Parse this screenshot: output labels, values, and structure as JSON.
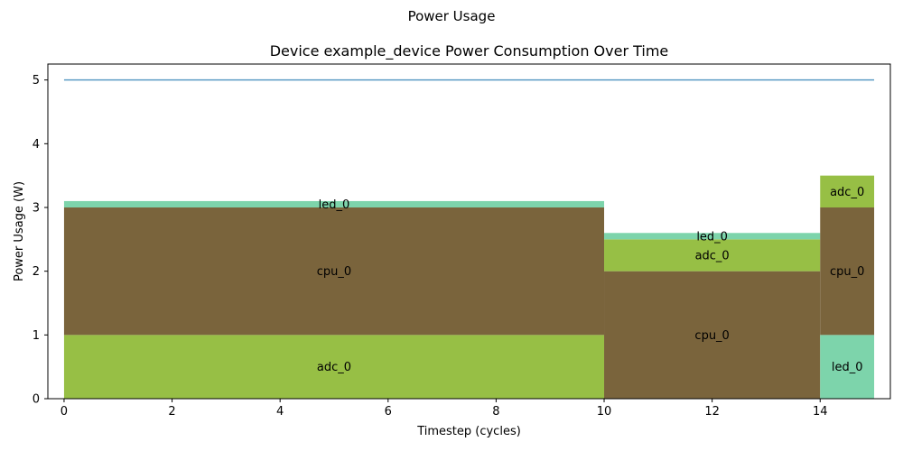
{
  "figure_title": "Power Usage",
  "chart_data": {
    "type": "area",
    "title": "Device example_device Power Consumption Over Time",
    "xlabel": "Timestep (cycles)",
    "ylabel": "Power Usage (W)",
    "xlim": [
      -0.3,
      15.3
    ],
    "ylim": [
      0,
      5.25
    ],
    "xticks": [
      0,
      2,
      4,
      6,
      8,
      10,
      12,
      14
    ],
    "yticks": [
      0,
      1,
      2,
      3,
      4,
      5
    ],
    "grid": false,
    "limit_line": {
      "value": 5,
      "x_range": [
        0,
        15
      ],
      "color": "#5b9bc4"
    },
    "segments": [
      {
        "x_range": [
          0,
          10
        ],
        "stack": [
          {
            "name": "adc_0",
            "value": 1.0,
            "color": "#97bf45"
          },
          {
            "name": "cpu_0",
            "value": 2.0,
            "color": "#7a643c"
          },
          {
            "name": "led_0",
            "value": 0.1,
            "color": "#7dd4ab"
          }
        ]
      },
      {
        "x_range": [
          10,
          14
        ],
        "stack": [
          {
            "name": "cpu_0",
            "value": 2.0,
            "color": "#7a643c"
          },
          {
            "name": "adc_0",
            "value": 0.5,
            "color": "#97bf45"
          },
          {
            "name": "led_0",
            "value": 0.1,
            "color": "#7dd4ab"
          }
        ]
      },
      {
        "x_range": [
          14,
          15
        ],
        "stack": [
          {
            "name": "led_0",
            "value": 1.0,
            "color": "#7dd4ab"
          },
          {
            "name": "cpu_0",
            "value": 2.0,
            "color": "#7a643c"
          },
          {
            "name": "adc_0",
            "value": 0.5,
            "color": "#97bf45"
          }
        ]
      }
    ]
  }
}
